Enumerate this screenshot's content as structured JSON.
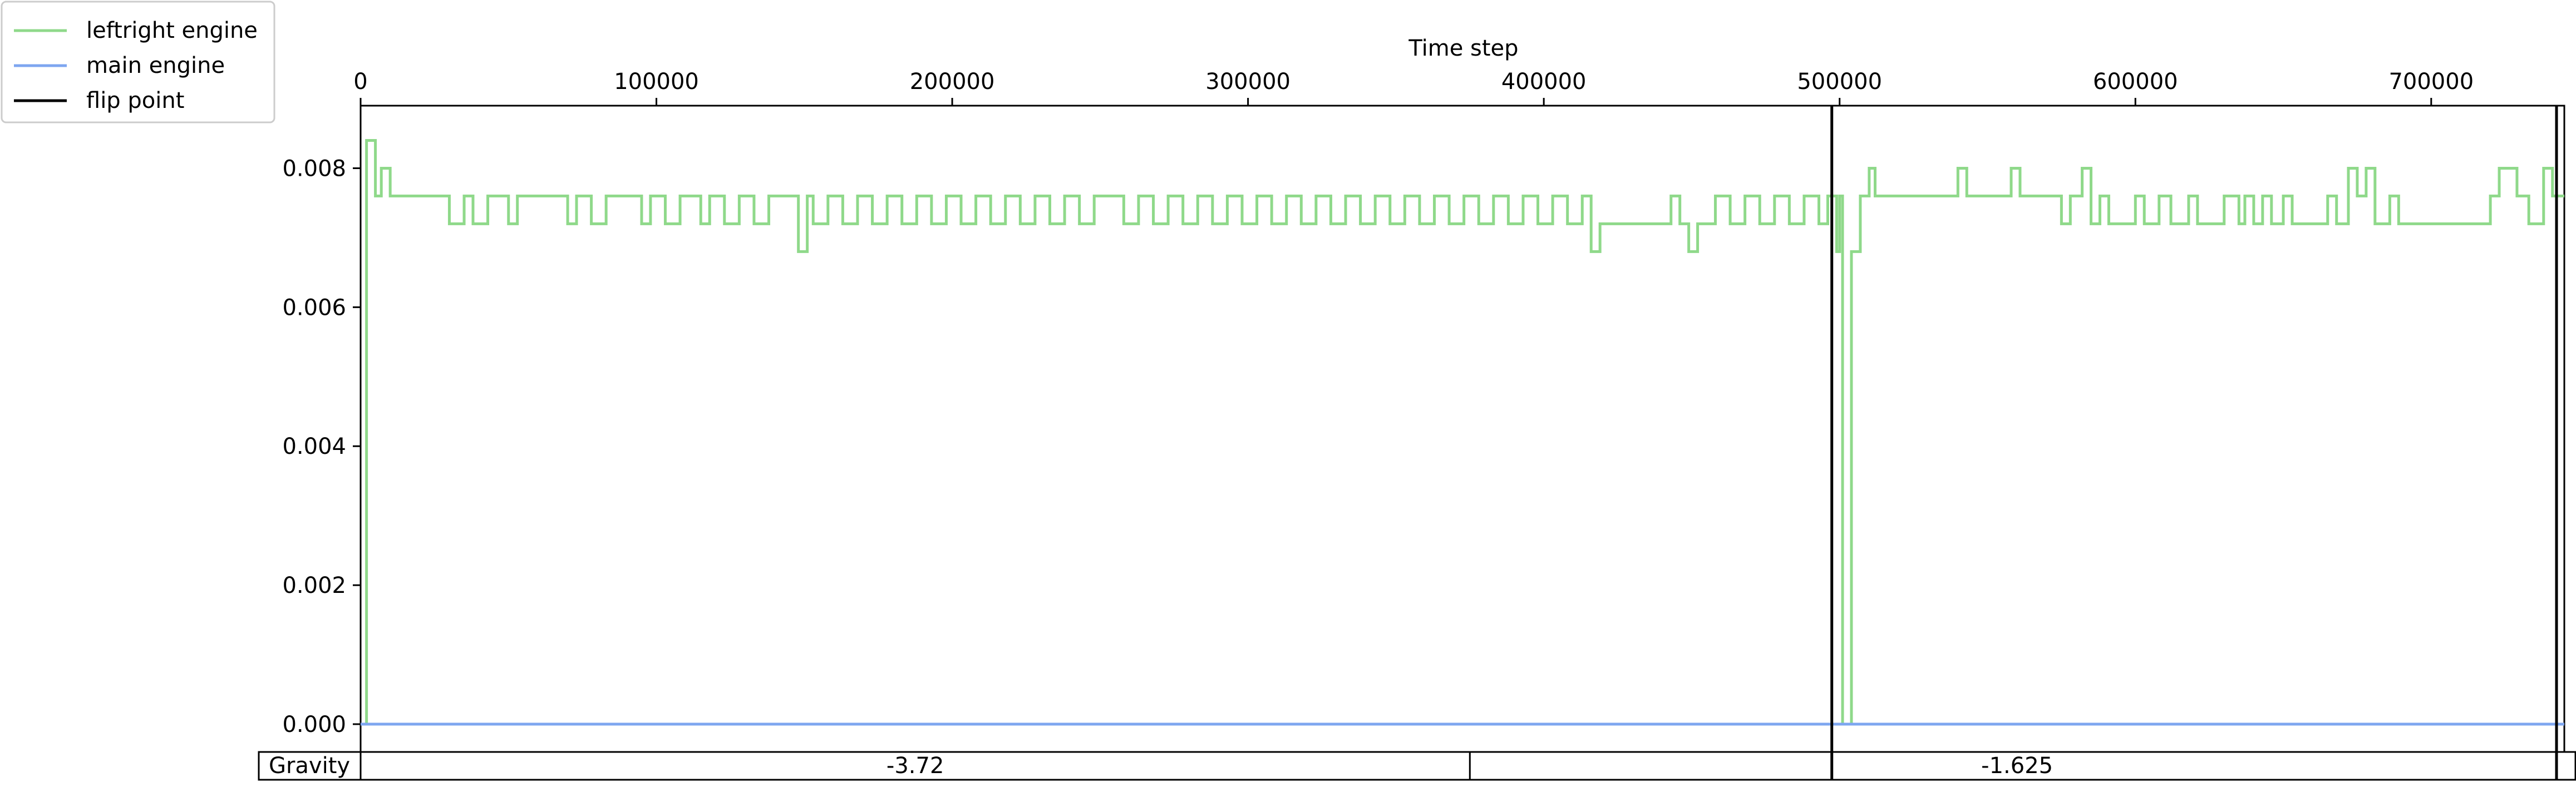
{
  "chart_data": {
    "type": "line",
    "xlabel": "Time step",
    "xlim": [
      0,
      745000
    ],
    "ylim": [
      -0.0004,
      0.0089
    ],
    "x_ticks": [
      0,
      100000,
      200000,
      300000,
      400000,
      500000,
      600000,
      700000
    ],
    "y_ticks": [
      0.0,
      0.002,
      0.004,
      0.006,
      0.008
    ],
    "y_tick_labels": [
      "0.000",
      "0.002",
      "0.004",
      "0.006",
      "0.008"
    ],
    "legend_position": "top-left outside",
    "legend": [
      {
        "label": "leftright engine",
        "color": "#8fd98a"
      },
      {
        "label": "main engine",
        "color": "#7ea6f0"
      },
      {
        "label": "flip point",
        "color": "#000000"
      }
    ],
    "series": [
      {
        "name": "leftright engine",
        "color": "#8fd98a",
        "step": true,
        "x": [
          0,
          2000,
          5000,
          7000,
          10000,
          30000,
          35000,
          38000,
          43000,
          50000,
          53000,
          70000,
          73000,
          78000,
          83000,
          95000,
          98000,
          103000,
          108000,
          115000,
          118000,
          123000,
          128000,
          133000,
          138000,
          148000,
          151000,
          153000,
          158000,
          163000,
          168000,
          173000,
          178000,
          183000,
          188000,
          193000,
          198000,
          203000,
          208000,
          213000,
          218000,
          223000,
          228000,
          233000,
          238000,
          243000,
          248000,
          258000,
          263000,
          268000,
          273000,
          278000,
          283000,
          288000,
          293000,
          298000,
          303000,
          308000,
          313000,
          318000,
          323000,
          328000,
          333000,
          338000,
          343000,
          348000,
          353000,
          358000,
          363000,
          368000,
          373000,
          378000,
          383000,
          388000,
          393000,
          398000,
          403000,
          408000,
          413000,
          416000,
          419000,
          443000,
          446000,
          449000,
          452000,
          458000,
          463000,
          468000,
          473000,
          478000,
          483000,
          488000,
          493000,
          496000,
          499000,
          500000,
          501000,
          504000,
          507000,
          510000,
          512000,
          540000,
          543000,
          558000,
          561000,
          575000,
          578000,
          582000,
          585000,
          588000,
          591000,
          600000,
          603000,
          608000,
          612000,
          618000,
          621000,
          630000,
          635000,
          637000,
          640000,
          643000,
          646000,
          650000,
          653000,
          665000,
          668000,
          672000,
          675000,
          678000,
          681000,
          686000,
          689000,
          720000,
          723000,
          729000,
          733000,
          738000,
          741000,
          745000
        ],
        "y": [
          0.0,
          0.0084,
          0.0076,
          0.008,
          0.0076,
          0.0072,
          0.0076,
          0.0072,
          0.0076,
          0.0072,
          0.0076,
          0.0072,
          0.0076,
          0.0072,
          0.0076,
          0.0072,
          0.0076,
          0.0072,
          0.0076,
          0.0072,
          0.0076,
          0.0072,
          0.0076,
          0.0072,
          0.0076,
          0.0068,
          0.0076,
          0.0072,
          0.0076,
          0.0072,
          0.0076,
          0.0072,
          0.0076,
          0.0072,
          0.0076,
          0.0072,
          0.0076,
          0.0072,
          0.0076,
          0.0072,
          0.0076,
          0.0072,
          0.0076,
          0.0072,
          0.0076,
          0.0072,
          0.0076,
          0.0072,
          0.0076,
          0.0072,
          0.0076,
          0.0072,
          0.0076,
          0.0072,
          0.0076,
          0.0072,
          0.0076,
          0.0072,
          0.0076,
          0.0072,
          0.0076,
          0.0072,
          0.0076,
          0.0072,
          0.0076,
          0.0072,
          0.0076,
          0.0072,
          0.0076,
          0.0072,
          0.0076,
          0.0072,
          0.0076,
          0.0072,
          0.0076,
          0.0072,
          0.0076,
          0.0072,
          0.0076,
          0.0068,
          0.0072,
          0.0076,
          0.0072,
          0.0068,
          0.0072,
          0.0076,
          0.0072,
          0.0076,
          0.0072,
          0.0076,
          0.0072,
          0.0076,
          0.0072,
          0.0076,
          0.0068,
          0.0076,
          0.0,
          0.0068,
          0.0076,
          0.008,
          0.0076,
          0.008,
          0.0076,
          0.008,
          0.0076,
          0.0072,
          0.0076,
          0.008,
          0.0072,
          0.0076,
          0.0072,
          0.0076,
          0.0072,
          0.0076,
          0.0072,
          0.0076,
          0.0072,
          0.0076,
          0.0072,
          0.0076,
          0.0072,
          0.0076,
          0.0072,
          0.0076,
          0.0072,
          0.0076,
          0.0072,
          0.008,
          0.0076,
          0.008,
          0.0072,
          0.0076,
          0.0072,
          0.0076,
          0.008,
          0.0076,
          0.0072,
          0.008,
          0.0076,
          0.0076
        ]
      },
      {
        "name": "main engine",
        "color": "#7ea6f0",
        "x": [
          0,
          745000
        ],
        "y": [
          0.0,
          0.0
        ]
      }
    ],
    "flip_points": [
      500000,
      745000
    ],
    "table": {
      "row_label": "Gravity",
      "cells": [
        {
          "value": "-3.72",
          "x_start": 0,
          "x_end": 375000
        },
        {
          "value": "-1.625",
          "x_start": 375000,
          "x_end": 745000
        }
      ]
    }
  }
}
